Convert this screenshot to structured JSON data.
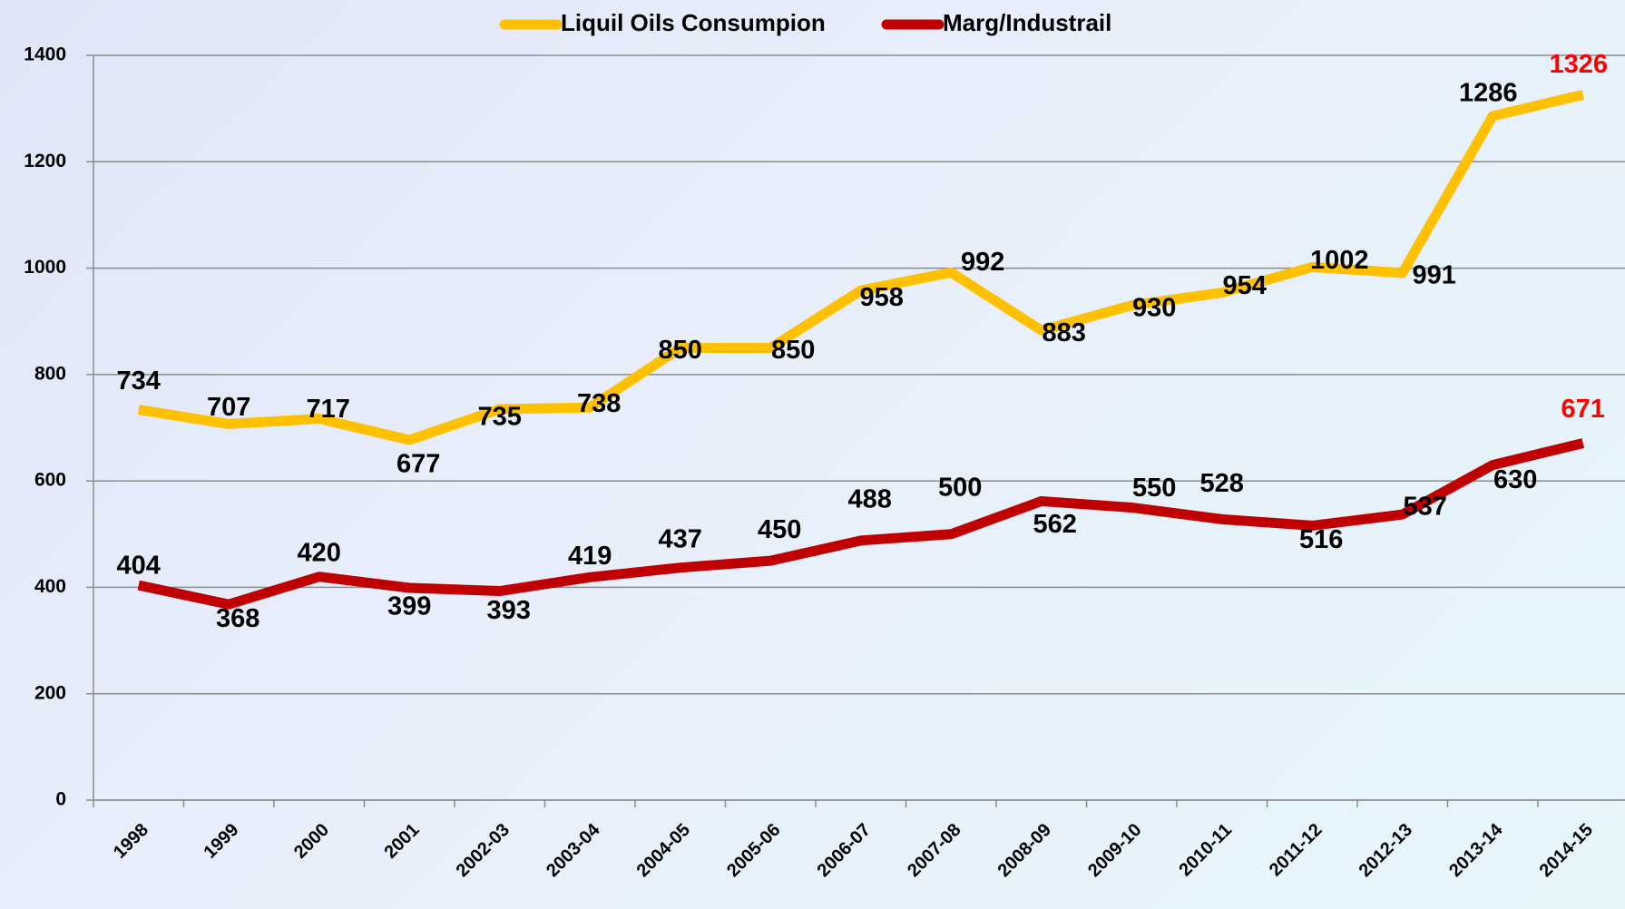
{
  "chart_data": {
    "type": "line",
    "categories": [
      "1998",
      "1999",
      "2000",
      "2001",
      "2002-03",
      "2003-04",
      "2004-05",
      "2005-06",
      "2006-07",
      "2007-08",
      "2008-09",
      "2009-10",
      "2010-11",
      "2011-12",
      "2012-13",
      "2013-14",
      "2014-15"
    ],
    "series": [
      {
        "name": "Liquil Oils Consumpion",
        "color": "#ffc000",
        "values": [
          734,
          707,
          717,
          677,
          735,
          738,
          850,
          850,
          958,
          992,
          883,
          930,
          954,
          1002,
          991,
          1286,
          1326
        ]
      },
      {
        "name": "Marg/Industrail",
        "color": "#c00000",
        "values": [
          404,
          368,
          420,
          399,
          393,
          419,
          437,
          450,
          488,
          500,
          562,
          550,
          528,
          516,
          537,
          630,
          671
        ]
      }
    ],
    "ylim": [
      0,
      1400
    ],
    "yticks": [
      0,
      200,
      400,
      600,
      800,
      1000,
      1200,
      1400
    ],
    "grid": true,
    "legend": "top"
  }
}
